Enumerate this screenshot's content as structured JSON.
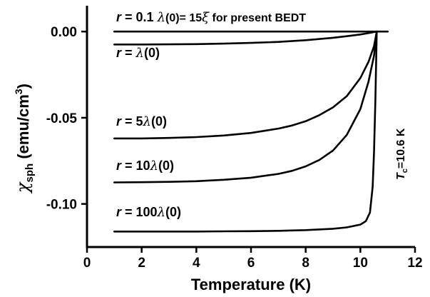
{
  "chart_data": {
    "type": "line",
    "xlabel": "Temperature (K)",
    "ylabel": {
      "symbol": "χ",
      "subscript": "sph",
      "units": " (emu/cm",
      "sup": "3",
      "close": ")"
    },
    "xlim": [
      0,
      12
    ],
    "ylim": [
      -0.125,
      0.015
    ],
    "x_ticks": [
      "0",
      "2",
      "4",
      "6",
      "8",
      "10",
      "12"
    ],
    "y_ticks": [
      "0.00",
      "-0.05",
      "-0.10"
    ],
    "grid": false,
    "legend": "none",
    "series": [
      {
        "label": {
          "pre": "r",
          "mid": " = 0.1 ",
          "lam": "λ",
          "post": "(0)= 15",
          "xi": "ξ",
          "tail": " for present BEDT"
        },
        "x": [
          1.0,
          2,
          3,
          4,
          5,
          6,
          7,
          8,
          9,
          10,
          10.3,
          10.5,
          10.6,
          11.0
        ],
        "y": [
          0.0,
          0.0,
          0.0,
          0.0,
          0.0,
          0.0,
          0.0,
          0.0,
          0.0,
          0.0,
          0.0,
          0.0,
          0.0,
          0.0
        ]
      },
      {
        "label": {
          "pre": "r",
          "mid": " = ",
          "lam": "λ",
          "post": "(0)"
        },
        "x": [
          1.0,
          2,
          3,
          4,
          5,
          6,
          7,
          8,
          9,
          9.5,
          10.0,
          10.3,
          10.5,
          10.6
        ],
        "y": [
          -0.0075,
          -0.0075,
          -0.0074,
          -0.0073,
          -0.007,
          -0.0066,
          -0.006,
          -0.005,
          -0.0036,
          -0.0027,
          -0.0017,
          -0.0009,
          -0.0003,
          0.0
        ]
      },
      {
        "label": {
          "pre": "r",
          "mid": " = 5",
          "lam": "λ",
          "post": "(0)"
        },
        "x": [
          1.0,
          2,
          3,
          4,
          5,
          6,
          7,
          7.5,
          8,
          8.5,
          9,
          9.5,
          10.0,
          10.3,
          10.5,
          10.6
        ],
        "y": [
          -0.062,
          -0.062,
          -0.0617,
          -0.0612,
          -0.0603,
          -0.0588,
          -0.0563,
          -0.0545,
          -0.052,
          -0.0485,
          -0.044,
          -0.0375,
          -0.027,
          -0.0175,
          -0.0085,
          0.0
        ]
      },
      {
        "label": {
          "pre": "r",
          "mid": " = 10",
          "lam": "λ",
          "post": "(0)"
        },
        "x": [
          1.0,
          2,
          3,
          4,
          5,
          6,
          7,
          7.5,
          8,
          8.5,
          9,
          9.5,
          10.0,
          10.3,
          10.5,
          10.6
        ],
        "y": [
          -0.0875,
          -0.0874,
          -0.0872,
          -0.0868,
          -0.086,
          -0.0848,
          -0.0826,
          -0.0808,
          -0.0782,
          -0.0745,
          -0.069,
          -0.06,
          -0.045,
          -0.029,
          -0.014,
          0.0
        ]
      },
      {
        "label": {
          "pre": "r",
          "mid": " = 100",
          "lam": "λ",
          "post": "(0)"
        },
        "x": [
          1.0,
          2,
          3,
          4,
          5,
          6,
          7,
          8,
          9,
          9.5,
          10.0,
          10.2,
          10.35,
          10.45,
          10.5,
          10.55,
          10.6
        ],
        "y": [
          -0.116,
          -0.116,
          -0.116,
          -0.116,
          -0.1159,
          -0.1158,
          -0.1156,
          -0.1152,
          -0.1144,
          -0.1136,
          -0.112,
          -0.11,
          -0.105,
          -0.09,
          -0.07,
          -0.04,
          0.0
        ]
      }
    ],
    "annotations": {
      "tc": {
        "T": "T",
        "sub": "c",
        "value": "=10.6 K"
      }
    }
  }
}
